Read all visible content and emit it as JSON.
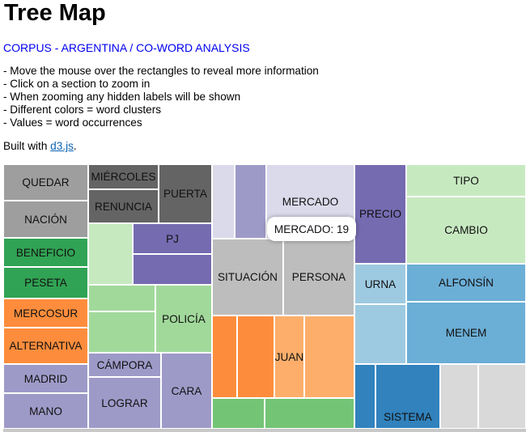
{
  "title": "Tree Map",
  "subtitle": "CORPUS - ARGENTINA / CO-WORD ANALYSIS",
  "instructions": [
    "- Move the mouse over the rectangles to reveal more information",
    "- Click on a section to zoom in",
    "- When zooming any hidden labels will be shown",
    "- Different colors = word clusters",
    "- Values = word occurrences"
  ],
  "built_prefix": "Built with ",
  "built_link": "d3.js",
  "built_suffix": ".",
  "tooltip": "MERCADO: 19",
  "colors": {
    "gray": "#9e9e9e",
    "dark_gray": "#646464",
    "green": "#31a354",
    "orange": "#fd8d3c",
    "purple_light": "#9e9ac8",
    "purple": "#756bb1",
    "green_light": "#a1d99b",
    "green_pale": "#c7e9c0",
    "mid_gray": "#bdbdbd",
    "lavender": "#dadaeb",
    "blue": "#3182bd",
    "blue_mid": "#6baed6",
    "blue_light": "#9ecae1",
    "light_gray": "#d9d9d9"
  },
  "labels": {
    "quedar": "QUEDAR",
    "nacion": "NACIÓN",
    "beneficio": "BENEFICIO",
    "peseta": "PESETA",
    "mercosur": "MERCOSUR",
    "alternativa": "ALTERNATIVA",
    "madrid": "MADRID",
    "mano": "MANO",
    "miercoles": "MIÉRCOLES",
    "renuncia": "RENUNCIA",
    "puerta": "PUERTA",
    "pj": "PJ",
    "policia": "POLICÍA",
    "campora": "CÁMPORA",
    "lograr": "LOGRAR",
    "cara": "CARA",
    "mercado": "MERCADO",
    "situacion": "SITUACIÓN",
    "persona": "PERSONA",
    "juan": "JUAN",
    "precio": "PRECIO",
    "urna": "URNA",
    "tipo": "TIPO",
    "cambio": "CAMBIO",
    "alfonsin": "ALFONSÍN",
    "menem": "MENEM",
    "sistema": "SISTEMA"
  }
}
